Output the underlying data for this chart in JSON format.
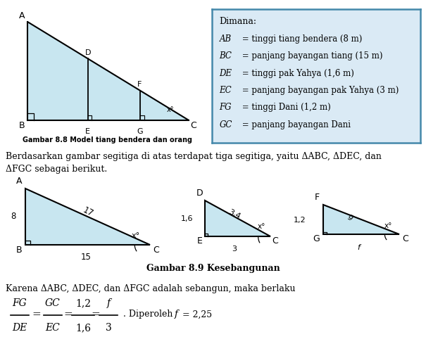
{
  "bg_color": "#ffffff",
  "info_box_bg": "#daeaf5",
  "info_box_border": "#4488aa",
  "triangle_fill": "#c8e6f0",
  "fig_width": 6.05,
  "fig_height": 5.16,
  "info_lines_italic": [
    "AB",
    "BC",
    "DE",
    "EC",
    "FG",
    "GC"
  ],
  "info_lines_normal": [
    " = tinggi tiang bendera (8 m)",
    " = panjang bayangan tiang (15 m)",
    " = tinggi pak Yahya (1,6 m)",
    " = panjang bayangan pak Yahya (3 m)",
    " = tinggi Dani (1,2 m)",
    " = panjang bayangan Dani"
  ],
  "caption1": "Gambar 8.8 Model tiang bendera dan orang",
  "caption2": "Gambar 8.9 Kesebangunan",
  "para_line1": "Berdasarkan gambar segitiga di atas terdapat tiga segitiga, yaitu ΔABC, ΔDEC, dan",
  "para_line2": "ΔFGC sebagai berikut.",
  "formula_prefix": "Karena ΔABC, ΔDEC, dan ΔFGC adalah sebangun, maka berlaku",
  "fracs_num": [
    "FG",
    "GC",
    "1,2",
    "f"
  ],
  "fracs_den": [
    "DE",
    "EC",
    "1,6",
    "3"
  ],
  "fracs_italic_num": [
    true,
    true,
    false,
    true
  ],
  "fracs_italic_den": [
    true,
    true,
    false,
    false
  ],
  "formula_suffix": ". Diperoleh ",
  "formula_f": "f",
  "formula_val": " = 2,25"
}
